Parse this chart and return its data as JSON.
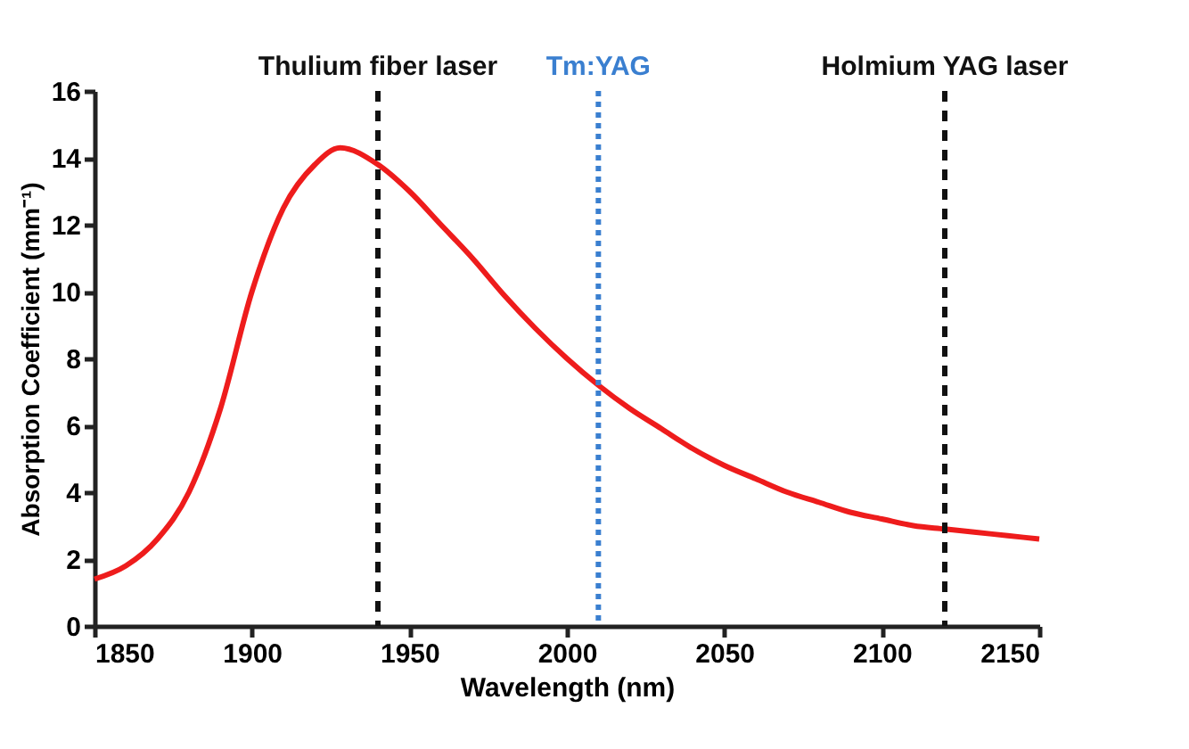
{
  "chart_data": {
    "type": "line",
    "xlabel": "Wavelength (nm)",
    "ylabel": "Absorption Coefficient (mm⁻¹)",
    "x": [
      1850,
      1860,
      1870,
      1880,
      1890,
      1900,
      1910,
      1920,
      1928,
      1940,
      1950,
      1960,
      1970,
      1980,
      1990,
      2000,
      2010,
      2020,
      2030,
      2040,
      2050,
      2060,
      2070,
      2080,
      2090,
      2100,
      2110,
      2120,
      2130,
      2140,
      2150
    ],
    "series": [
      {
        "color": "#ee1c1c",
        "values": [
          1.4,
          1.8,
          2.6,
          4.0,
          6.5,
          10.0,
          12.5,
          13.8,
          14.3,
          13.8,
          13.0,
          12.0,
          11.0,
          9.9,
          8.9,
          8.0,
          7.2,
          6.5,
          5.9,
          5.3,
          4.8,
          4.4,
          4.0,
          3.7,
          3.4,
          3.2,
          3.0,
          2.9,
          2.8,
          2.7,
          2.6
        ]
      }
    ],
    "xlim": [
      1850,
      2150
    ],
    "xticks": [
      1850,
      1900,
      1950,
      2000,
      2050,
      2100,
      2150
    ],
    "ylim": [
      0,
      16
    ],
    "yticks": [
      0,
      2,
      4,
      6,
      8,
      10,
      12,
      14,
      16
    ],
    "ref_lines": [
      {
        "axis": "x",
        "value": 1940,
        "label": "Thulium fiber laser",
        "color": "#111111",
        "line_style": "dashed"
      },
      {
        "axis": "x",
        "value": 2010,
        "label": "Tm:YAG",
        "color": "#3a7fd0",
        "line_style": "dotted"
      },
      {
        "axis": "x",
        "value": 2120,
        "label": "Holmium YAG laser",
        "color": "#111111",
        "line_style": "dashed"
      }
    ],
    "grid": false,
    "marker": "none",
    "line_style": "solid"
  }
}
